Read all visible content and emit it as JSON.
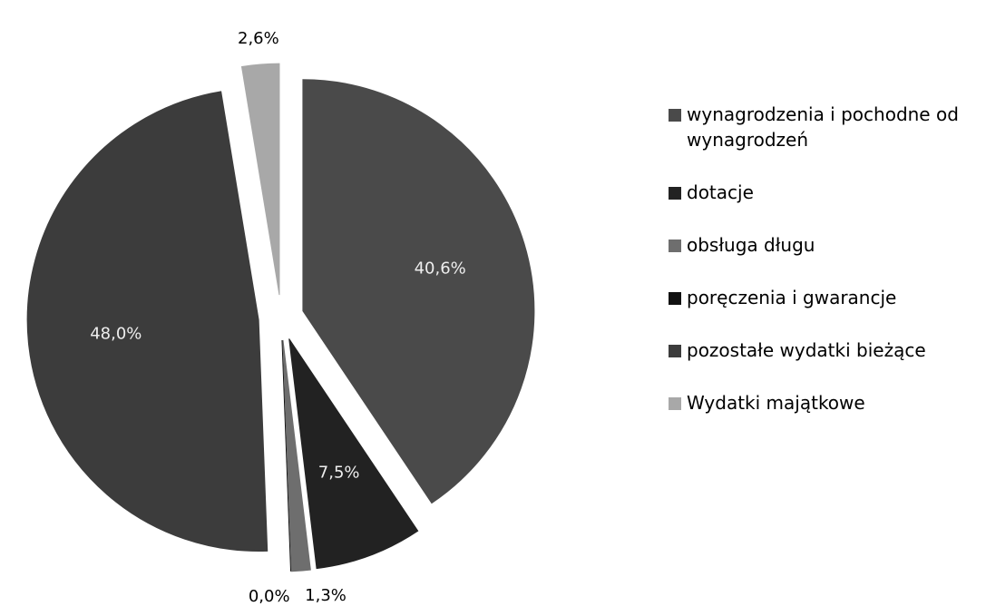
{
  "chart_data": {
    "type": "pie",
    "categories": [
      "wynagrodzenia i pochodne od wynagrodzeń",
      "dotacje",
      "obsługa długu",
      "poręczenia i gwarancje",
      "pozostałe wydatki bieżące",
      "Wydatki majątkowe"
    ],
    "values": [
      40.6,
      7.5,
      1.3,
      0.0,
      48.0,
      2.6
    ],
    "value_labels": [
      "40,6%",
      "7,5%",
      "1,3%",
      "0,0%",
      "48,0%",
      "2,6%"
    ],
    "colors": [
      "#4a4a4a",
      "#222222",
      "#6e6e6e",
      "#111111",
      "#3c3c3c",
      "#a8a8a8"
    ]
  }
}
